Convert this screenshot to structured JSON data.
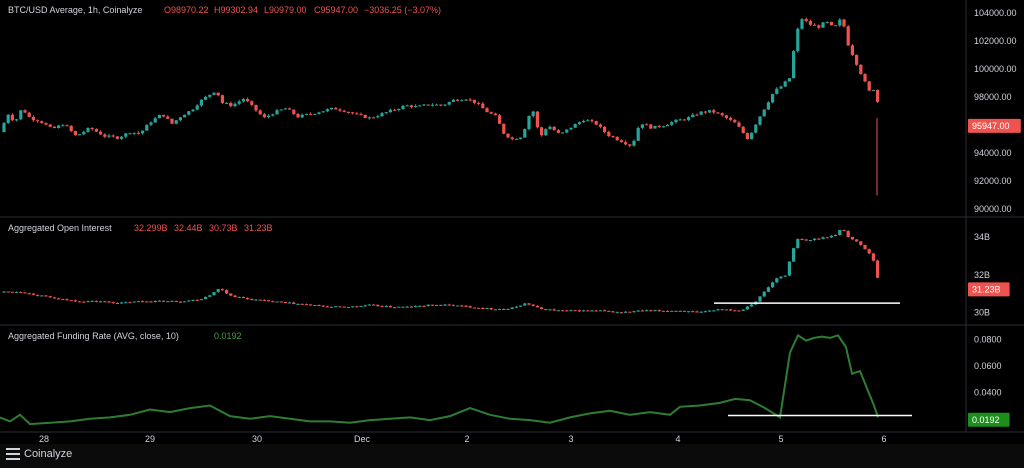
{
  "colors": {
    "up": "#26a69a",
    "down": "#ef5350",
    "funding": "#2e7d32",
    "funding_badge": "#1b8e1b",
    "grid_line": "#2a2e39",
    "text": "#d1d4dc",
    "level_line": "#ffffff"
  },
  "footer": {
    "brand": "Coinalyze",
    "icon": "coinalyze-logo-icon"
  },
  "chart_data": [
    {
      "type": "candlestick",
      "title": "BTC/USD Average, 1h, Coinalyze",
      "ohlc_header": {
        "o": "O98970.22",
        "h": "H99302.94",
        "l": "L90979.00",
        "c": "C95947.00",
        "change": "−3036.25 (−3.07%)"
      },
      "ylim": [
        89500,
        104800
      ],
      "yticks": [
        "104000.00",
        "102000.00",
        "100000.00",
        "98000.00",
        "96000.00",
        "94000.00",
        "92000.00",
        "90000.00"
      ],
      "ytick_values": [
        104000,
        102000,
        100000,
        98000,
        96000,
        94000,
        92000,
        90000
      ],
      "last_value_label": "95947.00",
      "last_value": 95947,
      "path": [
        [
          0,
          95500
        ],
        [
          8,
          96800
        ],
        [
          15,
          96200
        ],
        [
          22,
          97200
        ],
        [
          30,
          96500
        ],
        [
          40,
          96300
        ],
        [
          52,
          95700
        ],
        [
          64,
          96100
        ],
        [
          76,
          95200
        ],
        [
          90,
          95800
        ],
        [
          105,
          95200
        ],
        [
          118,
          95100
        ],
        [
          130,
          95500
        ],
        [
          140,
          95400
        ],
        [
          150,
          96200
        ],
        [
          162,
          96800
        ],
        [
          172,
          96100
        ],
        [
          182,
          96700
        ],
        [
          192,
          97100
        ],
        [
          200,
          97700
        ],
        [
          208,
          98100
        ],
        [
          216,
          98500
        ],
        [
          222,
          97600
        ],
        [
          232,
          97400
        ],
        [
          244,
          97900
        ],
        [
          254,
          97200
        ],
        [
          264,
          96500
        ],
        [
          274,
          96900
        ],
        [
          286,
          97200
        ],
        [
          298,
          96600
        ],
        [
          310,
          96800
        ],
        [
          322,
          97000
        ],
        [
          334,
          97200
        ],
        [
          346,
          97000
        ],
        [
          358,
          96700
        ],
        [
          370,
          96500
        ],
        [
          382,
          96800
        ],
        [
          394,
          97100
        ],
        [
          406,
          97400
        ],
        [
          418,
          97300
        ],
        [
          430,
          97500
        ],
        [
          442,
          97400
        ],
        [
          454,
          97800
        ],
        [
          466,
          97900
        ],
        [
          476,
          97600
        ],
        [
          486,
          97000
        ],
        [
          496,
          96600
        ],
        [
          504,
          95400
        ],
        [
          512,
          95000
        ],
        [
          522,
          95200
        ],
        [
          532,
          97300
        ],
        [
          540,
          95100
        ],
        [
          548,
          96000
        ],
        [
          560,
          95300
        ],
        [
          572,
          95900
        ],
        [
          584,
          96400
        ],
        [
          596,
          96100
        ],
        [
          608,
          95300
        ],
        [
          620,
          94900
        ],
        [
          632,
          94500
        ],
        [
          640,
          96200
        ],
        [
          652,
          95800
        ],
        [
          664,
          96000
        ],
        [
          676,
          96300
        ],
        [
          688,
          96500
        ],
        [
          700,
          96900
        ],
        [
          712,
          97000
        ],
        [
          724,
          96600
        ],
        [
          736,
          96100
        ],
        [
          748,
          95000
        ],
        [
          758,
          96400
        ],
        [
          766,
          97400
        ],
        [
          774,
          98400
        ],
        [
          782,
          98800
        ],
        [
          790,
          99400
        ],
        [
          796,
          102500
        ],
        [
          802,
          103600
        ],
        [
          810,
          103200
        ],
        [
          818,
          103000
        ],
        [
          826,
          103400
        ],
        [
          834,
          102900
        ],
        [
          842,
          103700
        ],
        [
          848,
          101800
        ],
        [
          856,
          100500
        ],
        [
          864,
          99200
        ],
        [
          870,
          98300
        ],
        [
          876,
          98800
        ],
        [
          880,
          96000
        ]
      ],
      "spike_low": [
        877,
        90979
      ]
    },
    {
      "type": "candlestick",
      "title": "Aggregated Open Interest",
      "ohlc_header": {
        "o": "32.299B",
        "h": "32.44B",
        "l": "30.73B",
        "c": "31.23B"
      },
      "ylim": [
        29.4,
        35.0
      ],
      "yticks": [
        "34B",
        "32B",
        "30B"
      ],
      "ytick_values": [
        34,
        32,
        30
      ],
      "last_value_label": "31.23B",
      "last_value": 31.23,
      "reference_level": 30.5,
      "path": [
        [
          0,
          31.1
        ],
        [
          20,
          31.1
        ],
        [
          40,
          30.9
        ],
        [
          60,
          30.7
        ],
        [
          80,
          30.6
        ],
        [
          100,
          30.6
        ],
        [
          120,
          30.5
        ],
        [
          140,
          30.6
        ],
        [
          160,
          30.6
        ],
        [
          180,
          30.6
        ],
        [
          200,
          30.7
        ],
        [
          212,
          31.0
        ],
        [
          220,
          31.3
        ],
        [
          230,
          30.9
        ],
        [
          250,
          30.7
        ],
        [
          270,
          30.6
        ],
        [
          290,
          30.5
        ],
        [
          310,
          30.4
        ],
        [
          330,
          30.3
        ],
        [
          350,
          30.3
        ],
        [
          370,
          30.4
        ],
        [
          390,
          30.3
        ],
        [
          410,
          30.3
        ],
        [
          430,
          30.4
        ],
        [
          450,
          30.4
        ],
        [
          470,
          30.3
        ],
        [
          490,
          30.2
        ],
        [
          510,
          30.2
        ],
        [
          526,
          30.5
        ],
        [
          540,
          30.2
        ],
        [
          560,
          30.1
        ],
        [
          580,
          30.1
        ],
        [
          600,
          30.1
        ],
        [
          620,
          30.0
        ],
        [
          640,
          30.1
        ],
        [
          660,
          30.1
        ],
        [
          680,
          30.1
        ],
        [
          700,
          30.0
        ],
        [
          720,
          30.2
        ],
        [
          740,
          30.1
        ],
        [
          756,
          30.6
        ],
        [
          766,
          31.2
        ],
        [
          776,
          31.8
        ],
        [
          786,
          32.0
        ],
        [
          792,
          33.2
        ],
        [
          798,
          33.9
        ],
        [
          806,
          33.8
        ],
        [
          816,
          33.9
        ],
        [
          826,
          34.0
        ],
        [
          836,
          34.1
        ],
        [
          842,
          34.5
        ],
        [
          848,
          34.0
        ],
        [
          856,
          33.8
        ],
        [
          864,
          33.4
        ],
        [
          872,
          33.0
        ],
        [
          876,
          32.3
        ],
        [
          880,
          31.2
        ]
      ]
    },
    {
      "type": "line",
      "title": "Aggregated Funding Rate (AVG, close, 10)",
      "current": "0.0192",
      "current_value": 0.0192,
      "ylim": [
        0.01,
        0.09
      ],
      "yticks": [
        "0.0800",
        "0.0600",
        "0.0400"
      ],
      "ytick_values": [
        0.08,
        0.06,
        0.04
      ],
      "last_value_label": "0.0192",
      "reference_level": 0.0225,
      "path": [
        [
          0,
          0.021
        ],
        [
          10,
          0.018
        ],
        [
          20,
          0.023
        ],
        [
          30,
          0.016
        ],
        [
          50,
          0.017
        ],
        [
          70,
          0.018
        ],
        [
          90,
          0.02
        ],
        [
          110,
          0.021
        ],
        [
          130,
          0.023
        ],
        [
          150,
          0.027
        ],
        [
          170,
          0.025
        ],
        [
          190,
          0.028
        ],
        [
          210,
          0.03
        ],
        [
          230,
          0.022
        ],
        [
          250,
          0.02
        ],
        [
          270,
          0.022
        ],
        [
          290,
          0.02
        ],
        [
          310,
          0.018
        ],
        [
          330,
          0.018
        ],
        [
          350,
          0.017
        ],
        [
          370,
          0.019
        ],
        [
          390,
          0.02
        ],
        [
          410,
          0.021
        ],
        [
          430,
          0.019
        ],
        [
          450,
          0.022
        ],
        [
          470,
          0.028
        ],
        [
          490,
          0.023
        ],
        [
          510,
          0.02
        ],
        [
          530,
          0.019
        ],
        [
          550,
          0.017
        ],
        [
          570,
          0.021
        ],
        [
          590,
          0.024
        ],
        [
          610,
          0.026
        ],
        [
          630,
          0.023
        ],
        [
          650,
          0.025
        ],
        [
          670,
          0.023
        ],
        [
          680,
          0.029
        ],
        [
          700,
          0.03
        ],
        [
          720,
          0.032
        ],
        [
          735,
          0.035
        ],
        [
          750,
          0.034
        ],
        [
          765,
          0.028
        ],
        [
          780,
          0.021
        ],
        [
          790,
          0.07
        ],
        [
          798,
          0.083
        ],
        [
          806,
          0.079
        ],
        [
          814,
          0.081
        ],
        [
          822,
          0.082
        ],
        [
          830,
          0.081
        ],
        [
          838,
          0.083
        ],
        [
          846,
          0.074
        ],
        [
          852,
          0.054
        ],
        [
          860,
          0.056
        ],
        [
          868,
          0.041
        ],
        [
          874,
          0.03
        ],
        [
          878,
          0.021
        ]
      ]
    }
  ],
  "xaxis": {
    "ticks": [
      "28",
      "29",
      "30",
      "Dec",
      "2",
      "3",
      "4",
      "5",
      "6"
    ],
    "tick_positions": [
      44,
      150,
      257,
      362,
      467,
      571,
      678,
      781,
      884
    ]
  }
}
